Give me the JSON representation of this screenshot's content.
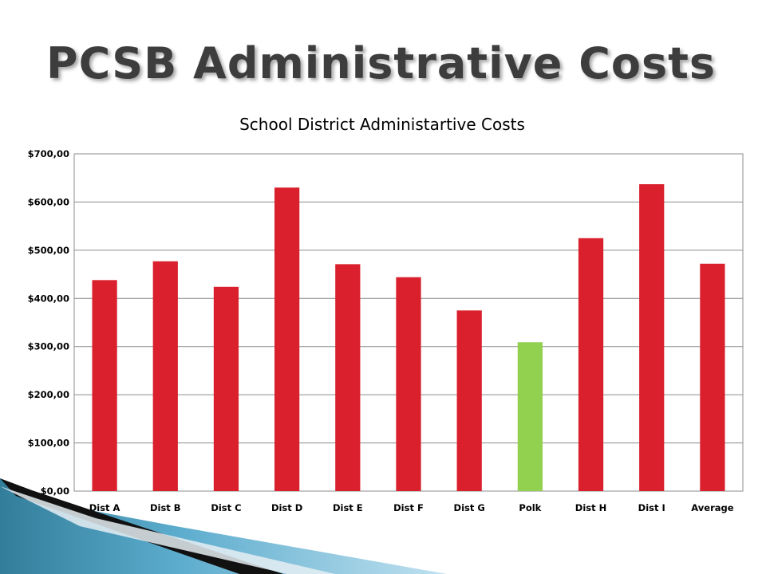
{
  "slide": {
    "title": "PCSB Administrative Costs"
  },
  "chart_data": {
    "type": "bar",
    "title": "School District Administartive Costs",
    "xlabel": "",
    "ylabel": "",
    "categories": [
      "Dist A",
      "Dist B",
      "Dist C",
      "Dist D",
      "Dist E",
      "Dist F",
      "Dist G",
      "Polk",
      "Dist H",
      "Dist I",
      "Average"
    ],
    "values": [
      438,
      477,
      424,
      630,
      471,
      444,
      375,
      309,
      525,
      637,
      472
    ],
    "ylim": [
      0,
      700
    ],
    "yticks": [
      0,
      100,
      200,
      300,
      400,
      500,
      600,
      700
    ],
    "ytick_labels": [
      "$0,00",
      "$100,00",
      "$200,00",
      "$300,00",
      "$400,00",
      "$500,00",
      "$600,00",
      "$700,00"
    ],
    "grid": true,
    "colors": {
      "default": "#d9202c",
      "highlight": "#92d050",
      "highlight_category": "Polk"
    }
  }
}
